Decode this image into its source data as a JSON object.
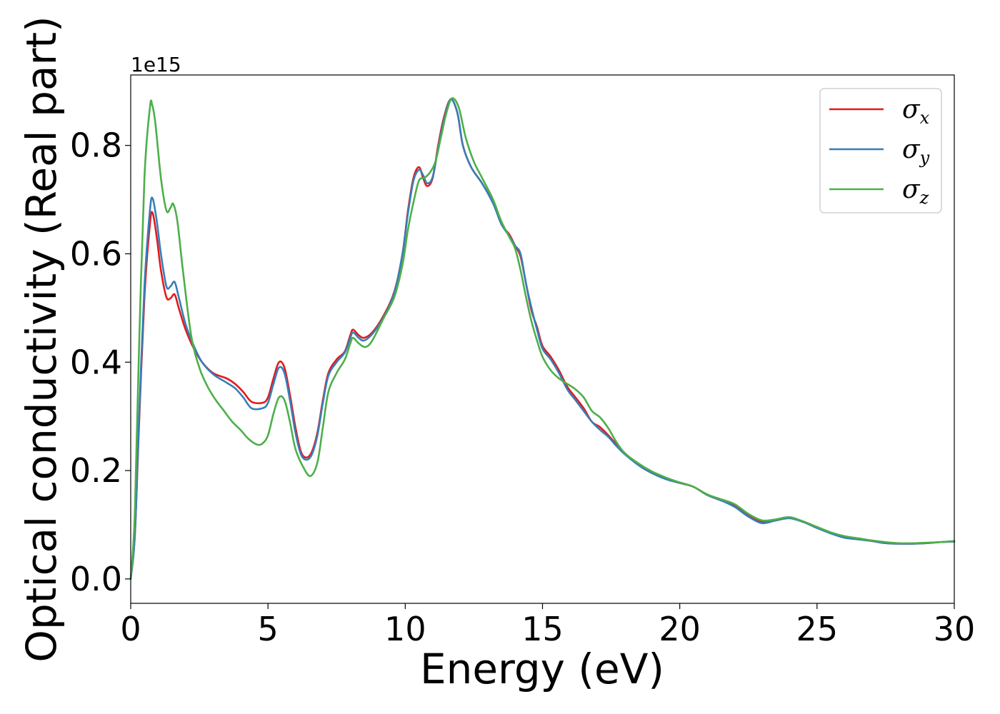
{
  "chart_data": {
    "type": "line",
    "title": "",
    "xlabel": "Energy (eV)",
    "ylabel": "Optical conductivity (Real part)",
    "y_offset_label": "1e15",
    "xlim": [
      0,
      30
    ],
    "ylim": [
      -0.045,
      0.93
    ],
    "x_ticks": [
      0,
      5,
      10,
      15,
      20,
      25,
      30
    ],
    "x_tick_labels": [
      "0",
      "5",
      "10",
      "15",
      "20",
      "25",
      "30"
    ],
    "y_ticks": [
      0.0,
      0.2,
      0.4,
      0.6,
      0.8
    ],
    "y_tick_labels": [
      "0.0",
      "0.2",
      "0.4",
      "0.6",
      "0.8"
    ],
    "grid": false,
    "legend_position": "top-right",
    "series": [
      {
        "name": "σx",
        "symbol": "σ",
        "subscript": "x",
        "color": "#e41a1c",
        "points": [
          [
            0,
            0
          ],
          [
            0.15,
            0.08
          ],
          [
            0.3,
            0.28
          ],
          [
            0.5,
            0.52
          ],
          [
            0.7,
            0.655
          ],
          [
            0.8,
            0.675
          ],
          [
            0.95,
            0.63
          ],
          [
            1.1,
            0.57
          ],
          [
            1.3,
            0.52
          ],
          [
            1.45,
            0.518
          ],
          [
            1.6,
            0.525
          ],
          [
            1.75,
            0.5
          ],
          [
            2.0,
            0.46
          ],
          [
            2.3,
            0.425
          ],
          [
            2.6,
            0.4
          ],
          [
            3.0,
            0.38
          ],
          [
            3.5,
            0.37
          ],
          [
            3.8,
            0.36
          ],
          [
            4.1,
            0.345
          ],
          [
            4.4,
            0.327
          ],
          [
            4.8,
            0.325
          ],
          [
            5.0,
            0.335
          ],
          [
            5.2,
            0.37
          ],
          [
            5.4,
            0.4
          ],
          [
            5.6,
            0.39
          ],
          [
            5.8,
            0.34
          ],
          [
            6.0,
            0.28
          ],
          [
            6.2,
            0.235
          ],
          [
            6.4,
            0.224
          ],
          [
            6.6,
            0.235
          ],
          [
            6.8,
            0.27
          ],
          [
            7.0,
            0.33
          ],
          [
            7.2,
            0.38
          ],
          [
            7.5,
            0.405
          ],
          [
            7.8,
            0.42
          ],
          [
            8.0,
            0.45
          ],
          [
            8.1,
            0.46
          ],
          [
            8.3,
            0.45
          ],
          [
            8.5,
            0.445
          ],
          [
            8.8,
            0.455
          ],
          [
            9.2,
            0.485
          ],
          [
            9.6,
            0.53
          ],
          [
            9.9,
            0.6
          ],
          [
            10.1,
            0.68
          ],
          [
            10.3,
            0.74
          ],
          [
            10.5,
            0.76
          ],
          [
            10.65,
            0.74
          ],
          [
            10.8,
            0.725
          ],
          [
            11.0,
            0.74
          ],
          [
            11.2,
            0.8
          ],
          [
            11.4,
            0.85
          ],
          [
            11.65,
            0.885
          ],
          [
            11.9,
            0.86
          ],
          [
            12.1,
            0.8
          ],
          [
            12.4,
            0.76
          ],
          [
            12.8,
            0.73
          ],
          [
            13.2,
            0.695
          ],
          [
            13.5,
            0.655
          ],
          [
            13.8,
            0.635
          ],
          [
            14.0,
            0.615
          ],
          [
            14.2,
            0.595
          ],
          [
            14.4,
            0.545
          ],
          [
            14.6,
            0.495
          ],
          [
            14.8,
            0.465
          ],
          [
            15.0,
            0.43
          ],
          [
            15.3,
            0.41
          ],
          [
            15.6,
            0.385
          ],
          [
            15.9,
            0.355
          ],
          [
            16.2,
            0.335
          ],
          [
            16.5,
            0.315
          ],
          [
            16.8,
            0.29
          ],
          [
            17.1,
            0.28
          ],
          [
            17.4,
            0.265
          ],
          [
            17.7,
            0.248
          ],
          [
            18.0,
            0.232
          ],
          [
            18.5,
            0.21
          ],
          [
            19.0,
            0.195
          ],
          [
            19.5,
            0.185
          ],
          [
            20.0,
            0.178
          ],
          [
            20.5,
            0.17
          ],
          [
            21.0,
            0.155
          ],
          [
            21.5,
            0.145
          ],
          [
            22.0,
            0.135
          ],
          [
            22.5,
            0.118
          ],
          [
            23.0,
            0.105
          ],
          [
            23.5,
            0.108
          ],
          [
            24.0,
            0.113
          ],
          [
            24.5,
            0.106
          ],
          [
            25.0,
            0.095
          ],
          [
            25.5,
            0.085
          ],
          [
            26.0,
            0.078
          ],
          [
            26.5,
            0.074
          ],
          [
            27.0,
            0.07
          ],
          [
            27.5,
            0.066
          ],
          [
            28.0,
            0.065
          ],
          [
            28.5,
            0.065
          ],
          [
            29.0,
            0.066
          ],
          [
            29.5,
            0.068
          ],
          [
            30.0,
            0.069
          ]
        ]
      },
      {
        "name": "σy",
        "symbol": "σ",
        "subscript": "y",
        "color": "#377eb8",
        "points": [
          [
            0,
            0
          ],
          [
            0.15,
            0.08
          ],
          [
            0.3,
            0.29
          ],
          [
            0.5,
            0.54
          ],
          [
            0.7,
            0.68
          ],
          [
            0.8,
            0.702
          ],
          [
            0.95,
            0.66
          ],
          [
            1.1,
            0.6
          ],
          [
            1.3,
            0.54
          ],
          [
            1.45,
            0.54
          ],
          [
            1.6,
            0.548
          ],
          [
            1.75,
            0.52
          ],
          [
            2.0,
            0.47
          ],
          [
            2.3,
            0.43
          ],
          [
            2.6,
            0.4
          ],
          [
            3.0,
            0.378
          ],
          [
            3.5,
            0.362
          ],
          [
            3.8,
            0.352
          ],
          [
            4.1,
            0.335
          ],
          [
            4.4,
            0.315
          ],
          [
            4.8,
            0.315
          ],
          [
            5.0,
            0.325
          ],
          [
            5.2,
            0.36
          ],
          [
            5.4,
            0.39
          ],
          [
            5.6,
            0.38
          ],
          [
            5.8,
            0.33
          ],
          [
            6.0,
            0.27
          ],
          [
            6.2,
            0.23
          ],
          [
            6.4,
            0.22
          ],
          [
            6.6,
            0.23
          ],
          [
            6.8,
            0.265
          ],
          [
            7.0,
            0.325
          ],
          [
            7.2,
            0.375
          ],
          [
            7.5,
            0.4
          ],
          [
            7.8,
            0.418
          ],
          [
            8.0,
            0.445
          ],
          [
            8.1,
            0.455
          ],
          [
            8.3,
            0.445
          ],
          [
            8.5,
            0.44
          ],
          [
            8.8,
            0.452
          ],
          [
            9.2,
            0.482
          ],
          [
            9.6,
            0.528
          ],
          [
            9.9,
            0.6
          ],
          [
            10.1,
            0.675
          ],
          [
            10.3,
            0.735
          ],
          [
            10.5,
            0.755
          ],
          [
            10.65,
            0.745
          ],
          [
            10.8,
            0.73
          ],
          [
            11.0,
            0.742
          ],
          [
            11.2,
            0.795
          ],
          [
            11.4,
            0.845
          ],
          [
            11.65,
            0.885
          ],
          [
            11.9,
            0.86
          ],
          [
            12.1,
            0.8
          ],
          [
            12.4,
            0.76
          ],
          [
            12.8,
            0.73
          ],
          [
            13.2,
            0.693
          ],
          [
            13.5,
            0.655
          ],
          [
            13.8,
            0.632
          ],
          [
            14.0,
            0.615
          ],
          [
            14.2,
            0.6
          ],
          [
            14.4,
            0.545
          ],
          [
            14.6,
            0.5
          ],
          [
            14.8,
            0.46
          ],
          [
            15.0,
            0.425
          ],
          [
            15.3,
            0.405
          ],
          [
            15.6,
            0.38
          ],
          [
            15.9,
            0.35
          ],
          [
            16.2,
            0.33
          ],
          [
            16.5,
            0.31
          ],
          [
            16.8,
            0.29
          ],
          [
            17.1,
            0.275
          ],
          [
            17.4,
            0.262
          ],
          [
            17.7,
            0.245
          ],
          [
            18.0,
            0.23
          ],
          [
            18.5,
            0.21
          ],
          [
            19.0,
            0.195
          ],
          [
            19.5,
            0.184
          ],
          [
            20.0,
            0.177
          ],
          [
            20.5,
            0.17
          ],
          [
            21.0,
            0.155
          ],
          [
            21.5,
            0.145
          ],
          [
            22.0,
            0.133
          ],
          [
            22.5,
            0.115
          ],
          [
            23.0,
            0.103
          ],
          [
            23.5,
            0.108
          ],
          [
            24.0,
            0.112
          ],
          [
            24.5,
            0.105
          ],
          [
            25.0,
            0.094
          ],
          [
            25.5,
            0.084
          ],
          [
            26.0,
            0.076
          ],
          [
            26.5,
            0.073
          ],
          [
            27.0,
            0.07
          ],
          [
            27.5,
            0.066
          ],
          [
            28.0,
            0.065
          ],
          [
            28.5,
            0.065
          ],
          [
            29.0,
            0.066
          ],
          [
            29.5,
            0.068
          ],
          [
            30.0,
            0.069
          ]
        ]
      },
      {
        "name": "σz",
        "symbol": "σ",
        "subscript": "z",
        "color": "#4daf4a",
        "points": [
          [
            0,
            0
          ],
          [
            0.15,
            0.12
          ],
          [
            0.3,
            0.42
          ],
          [
            0.5,
            0.74
          ],
          [
            0.7,
            0.87
          ],
          [
            0.78,
            0.875
          ],
          [
            0.9,
            0.84
          ],
          [
            1.1,
            0.74
          ],
          [
            1.3,
            0.68
          ],
          [
            1.45,
            0.685
          ],
          [
            1.55,
            0.692
          ],
          [
            1.7,
            0.66
          ],
          [
            1.9,
            0.57
          ],
          [
            2.2,
            0.45
          ],
          [
            2.5,
            0.39
          ],
          [
            2.8,
            0.355
          ],
          [
            3.1,
            0.33
          ],
          [
            3.4,
            0.31
          ],
          [
            3.7,
            0.29
          ],
          [
            4.0,
            0.275
          ],
          [
            4.3,
            0.258
          ],
          [
            4.6,
            0.248
          ],
          [
            4.8,
            0.25
          ],
          [
            5.0,
            0.265
          ],
          [
            5.2,
            0.305
          ],
          [
            5.4,
            0.335
          ],
          [
            5.6,
            0.33
          ],
          [
            5.8,
            0.29
          ],
          [
            6.0,
            0.24
          ],
          [
            6.3,
            0.205
          ],
          [
            6.55,
            0.19
          ],
          [
            6.8,
            0.215
          ],
          [
            7.0,
            0.28
          ],
          [
            7.2,
            0.345
          ],
          [
            7.5,
            0.38
          ],
          [
            7.8,
            0.405
          ],
          [
            8.0,
            0.435
          ],
          [
            8.1,
            0.445
          ],
          [
            8.3,
            0.435
          ],
          [
            8.55,
            0.428
          ],
          [
            8.8,
            0.44
          ],
          [
            9.2,
            0.48
          ],
          [
            9.6,
            0.52
          ],
          [
            9.9,
            0.58
          ],
          [
            10.1,
            0.645
          ],
          [
            10.3,
            0.695
          ],
          [
            10.5,
            0.735
          ],
          [
            10.7,
            0.74
          ],
          [
            10.9,
            0.75
          ],
          [
            11.1,
            0.77
          ],
          [
            11.3,
            0.815
          ],
          [
            11.5,
            0.86
          ],
          [
            11.7,
            0.887
          ],
          [
            11.95,
            0.87
          ],
          [
            12.2,
            0.815
          ],
          [
            12.5,
            0.77
          ],
          [
            12.8,
            0.74
          ],
          [
            13.2,
            0.7
          ],
          [
            13.5,
            0.66
          ],
          [
            13.8,
            0.63
          ],
          [
            14.0,
            0.61
          ],
          [
            14.2,
            0.57
          ],
          [
            14.4,
            0.52
          ],
          [
            14.6,
            0.475
          ],
          [
            14.8,
            0.44
          ],
          [
            15.0,
            0.41
          ],
          [
            15.3,
            0.385
          ],
          [
            15.6,
            0.37
          ],
          [
            15.9,
            0.36
          ],
          [
            16.2,
            0.35
          ],
          [
            16.5,
            0.335
          ],
          [
            16.8,
            0.31
          ],
          [
            17.1,
            0.298
          ],
          [
            17.4,
            0.278
          ],
          [
            17.7,
            0.252
          ],
          [
            18.0,
            0.232
          ],
          [
            18.5,
            0.213
          ],
          [
            19.0,
            0.198
          ],
          [
            19.5,
            0.187
          ],
          [
            20.0,
            0.178
          ],
          [
            20.5,
            0.17
          ],
          [
            21.0,
            0.156
          ],
          [
            21.5,
            0.147
          ],
          [
            22.0,
            0.138
          ],
          [
            22.5,
            0.12
          ],
          [
            23.0,
            0.108
          ],
          [
            23.5,
            0.11
          ],
          [
            24.0,
            0.114
          ],
          [
            24.5,
            0.106
          ],
          [
            25.0,
            0.096
          ],
          [
            25.5,
            0.086
          ],
          [
            26.0,
            0.079
          ],
          [
            26.5,
            0.075
          ],
          [
            27.0,
            0.071
          ],
          [
            27.5,
            0.068
          ],
          [
            28.0,
            0.066
          ],
          [
            28.5,
            0.066
          ],
          [
            29.0,
            0.067
          ],
          [
            29.5,
            0.068
          ],
          [
            30.0,
            0.07
          ]
        ]
      }
    ]
  }
}
